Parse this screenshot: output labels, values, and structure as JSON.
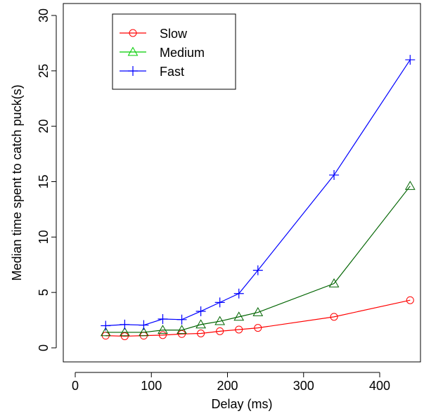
{
  "chart_data": {
    "type": "line",
    "title": "",
    "xlabel": "Delay (ms)",
    "ylabel": "Median time spent to catch puck(s)",
    "xlim": [
      0,
      450
    ],
    "ylim": [
      0,
      30
    ],
    "xticks": [
      0,
      100,
      200,
      300,
      400
    ],
    "yticks": [
      0,
      5,
      10,
      15,
      20,
      25,
      30
    ],
    "grid": false,
    "legend_position": "top-left",
    "x": [
      40,
      65,
      90,
      115,
      140,
      165,
      190,
      215,
      240,
      340,
      440
    ],
    "series": [
      {
        "name": "Slow",
        "color": "#ff0000",
        "marker": "circle",
        "values": [
          1.1,
          1.05,
          1.1,
          1.15,
          1.25,
          1.3,
          1.5,
          1.65,
          1.8,
          2.8,
          4.3
        ]
      },
      {
        "name": "Medium",
        "color": "#006400",
        "legend_color": "#00cc00",
        "marker": "triangle",
        "values": [
          1.4,
          1.4,
          1.4,
          1.6,
          1.6,
          2.1,
          2.4,
          2.8,
          3.2,
          5.8,
          14.6
        ]
      },
      {
        "name": "Fast",
        "color": "#0000ff",
        "marker": "plus",
        "values": [
          2.0,
          2.1,
          2.05,
          2.6,
          2.55,
          3.3,
          4.1,
          4.9,
          7.0,
          15.6,
          26.0
        ]
      }
    ]
  }
}
